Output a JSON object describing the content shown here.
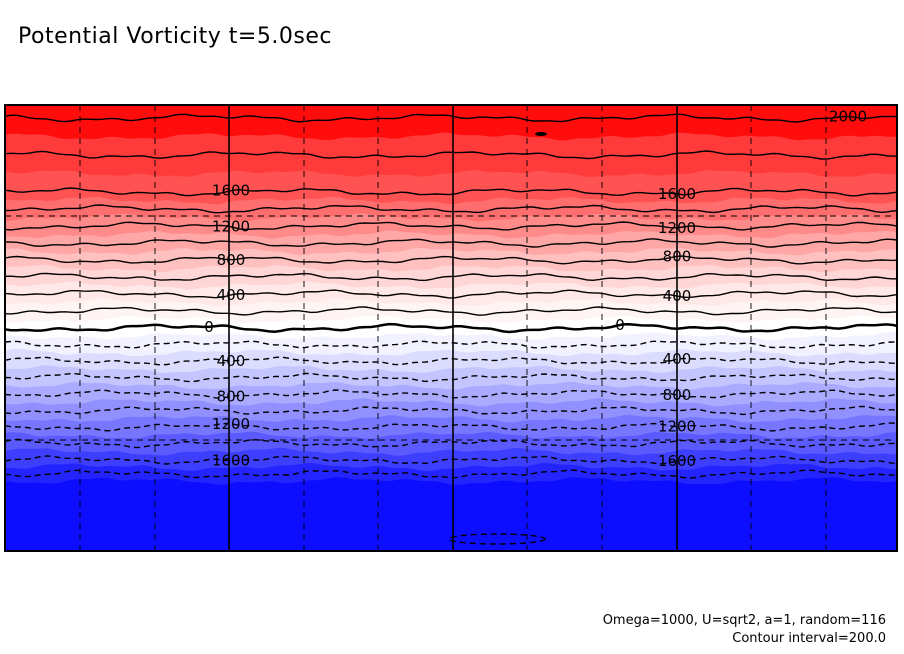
{
  "title": "Potential Vorticity t=5.0sec",
  "footer": {
    "params": "Omega=1000, U=sqrt2, a=1, random=116",
    "interval": "Contour interval=200.0"
  },
  "chart_data": {
    "type": "contour",
    "title": "Potential Vorticity t=5.0sec",
    "contour_interval": 200,
    "value_range": [
      -2000,
      2000
    ],
    "colormap": "blue-white-red",
    "grid": "dashed",
    "levels_labeled": [
      2000,
      1600,
      1200,
      800,
      400,
      0,
      -400,
      -800,
      -1200,
      -1600
    ],
    "labels": [
      {
        "text": "2000",
        "value": 2000,
        "col": 1
      },
      {
        "text": "1600",
        "value": 1600,
        "col": 0
      },
      {
        "text": "1600",
        "value": 1600,
        "col": 1
      },
      {
        "text": "1200",
        "value": 1200,
        "col": 0
      },
      {
        "text": "1200",
        "value": 1200,
        "col": 1
      },
      {
        "text": "800",
        "value": 800,
        "col": 0
      },
      {
        "text": "800",
        "value": 800,
        "col": 1
      },
      {
        "text": "400",
        "value": 400,
        "col": 0
      },
      {
        "text": "400",
        "value": 400,
        "col": 1
      },
      {
        "text": "0",
        "value": 0,
        "col": 0
      },
      {
        "text": "0",
        "value": 0,
        "col": 1
      },
      {
        "text": "400",
        "value": -400,
        "col": 0
      },
      {
        "text": "400",
        "value": -400,
        "col": 1
      },
      {
        "text": "800",
        "value": -800,
        "col": 0
      },
      {
        "text": "800",
        "value": -800,
        "col": 1
      },
      {
        "text": "1200",
        "value": -1200,
        "col": 0
      },
      {
        "text": "1200",
        "value": -1200,
        "col": 1
      },
      {
        "text": "1600",
        "value": -1600,
        "col": 0
      },
      {
        "text": "1600",
        "value": -1600,
        "col": 1
      }
    ],
    "levels": [
      {
        "value": 2000,
        "color": "#ff0d0d"
      },
      {
        "value": 1800,
        "color": "#ff3a3a"
      },
      {
        "value": 1600,
        "color": "#ff5252"
      },
      {
        "value": 1400,
        "color": "#ff6e6e"
      },
      {
        "value": 1200,
        "color": "#ff8a8a"
      },
      {
        "value": 1000,
        "color": "#ffa6a6"
      },
      {
        "value": 800,
        "color": "#ffc0c0"
      },
      {
        "value": 600,
        "color": "#ffd6d6"
      },
      {
        "value": 400,
        "color": "#ffe8e8"
      },
      {
        "value": 200,
        "color": "#fff4f4"
      },
      {
        "value": 0,
        "color": "#ffffff"
      },
      {
        "value": -200,
        "color": "#f1f1ff"
      },
      {
        "value": -400,
        "color": "#dcdcff"
      },
      {
        "value": -600,
        "color": "#c4c4ff"
      },
      {
        "value": -800,
        "color": "#aaaaff"
      },
      {
        "value": -1000,
        "color": "#9090ff"
      },
      {
        "value": -1200,
        "color": "#7676ff"
      },
      {
        "value": -1400,
        "color": "#5a5aff"
      },
      {
        "value": -1600,
        "color": "#3e3eff"
      },
      {
        "value": -1800,
        "color": "#2424ff"
      },
      {
        "value": -2000,
        "color": "#0d0dff"
      }
    ]
  }
}
